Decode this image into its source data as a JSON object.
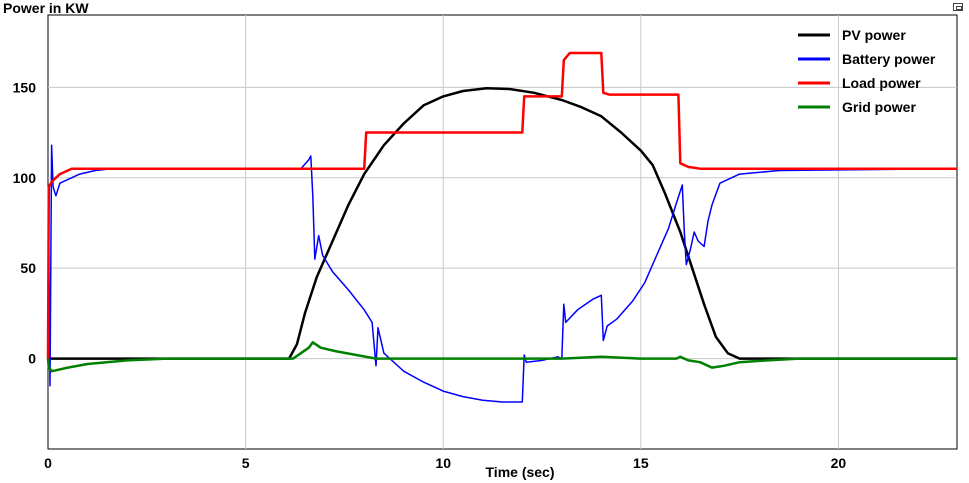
{
  "window": {
    "title": "Power in KW"
  },
  "chart_data": {
    "type": "line",
    "title": "Power in KW",
    "xlabel": "Time (sec)",
    "ylabel": "",
    "xlim": [
      0,
      23
    ],
    "ylim": [
      -50,
      190
    ],
    "x_ticks": [
      0,
      5,
      10,
      15,
      20
    ],
    "y_ticks": [
      0,
      50,
      100,
      150
    ],
    "grid": true,
    "legend_position": "top-right",
    "series": [
      {
        "name": "PV power",
        "color": "#000000",
        "points": [
          [
            0,
            0
          ],
          [
            6.1,
            0
          ],
          [
            6.3,
            8
          ],
          [
            6.5,
            25
          ],
          [
            6.8,
            45
          ],
          [
            7.2,
            65
          ],
          [
            7.6,
            85
          ],
          [
            8.0,
            102
          ],
          [
            8.5,
            118
          ],
          [
            9.0,
            130
          ],
          [
            9.5,
            140
          ],
          [
            10.0,
            145
          ],
          [
            10.5,
            148
          ],
          [
            11.1,
            149.5
          ],
          [
            11.7,
            149
          ],
          [
            12.3,
            147
          ],
          [
            13.0,
            143
          ],
          [
            13.5,
            139
          ],
          [
            14.0,
            134
          ],
          [
            14.5,
            125
          ],
          [
            15.0,
            115
          ],
          [
            15.3,
            107
          ],
          [
            15.6,
            92
          ],
          [
            16.0,
            70
          ],
          [
            16.3,
            50
          ],
          [
            16.6,
            30
          ],
          [
            16.9,
            12
          ],
          [
            17.2,
            3
          ],
          [
            17.5,
            0
          ],
          [
            23,
            0
          ]
        ]
      },
      {
        "name": "Battery power",
        "color": "#0000ff",
        "points": [
          [
            0,
            0
          ],
          [
            0.02,
            60
          ],
          [
            0.05,
            -15
          ],
          [
            0.09,
            118
          ],
          [
            0.13,
            95
          ],
          [
            0.2,
            90
          ],
          [
            0.3,
            97
          ],
          [
            0.5,
            99
          ],
          [
            0.8,
            102
          ],
          [
            1.2,
            104
          ],
          [
            1.6,
            105
          ],
          [
            6.4,
            105
          ],
          [
            6.6,
            110
          ],
          [
            6.65,
            112
          ],
          [
            6.7,
            90
          ],
          [
            6.75,
            55
          ],
          [
            6.85,
            68
          ],
          [
            6.95,
            57
          ],
          [
            7.2,
            48
          ],
          [
            7.6,
            38
          ],
          [
            8.0,
            27
          ],
          [
            8.2,
            20
          ],
          [
            8.3,
            -4
          ],
          [
            8.35,
            17
          ],
          [
            8.5,
            3
          ],
          [
            8.8,
            -3
          ],
          [
            9.0,
            -7
          ],
          [
            9.5,
            -13
          ],
          [
            10.0,
            -18
          ],
          [
            10.5,
            -21
          ],
          [
            11.0,
            -23
          ],
          [
            11.5,
            -24
          ],
          [
            12.0,
            -24
          ],
          [
            12.05,
            2
          ],
          [
            12.1,
            -2
          ],
          [
            12.5,
            -1
          ],
          [
            12.9,
            1
          ],
          [
            13.0,
            0
          ],
          [
            13.05,
            30
          ],
          [
            13.1,
            20
          ],
          [
            13.4,
            27
          ],
          [
            13.8,
            33
          ],
          [
            14.0,
            35
          ],
          [
            14.05,
            10
          ],
          [
            14.15,
            18
          ],
          [
            14.4,
            22
          ],
          [
            14.8,
            32
          ],
          [
            15.1,
            42
          ],
          [
            15.4,
            57
          ],
          [
            15.7,
            72
          ],
          [
            15.9,
            86
          ],
          [
            16.05,
            96
          ],
          [
            16.1,
            70
          ],
          [
            16.15,
            52
          ],
          [
            16.25,
            60
          ],
          [
            16.35,
            70
          ],
          [
            16.45,
            65
          ],
          [
            16.6,
            62
          ],
          [
            16.7,
            76
          ],
          [
            16.8,
            85
          ],
          [
            17.0,
            97
          ],
          [
            17.5,
            102
          ],
          [
            18.5,
            104
          ],
          [
            23,
            105
          ]
        ]
      },
      {
        "name": "Load power",
        "color": "#ff0000",
        "points": [
          [
            0,
            0
          ],
          [
            0.02,
            95
          ],
          [
            0.1,
            98
          ],
          [
            0.3,
            102
          ],
          [
            0.6,
            105
          ],
          [
            8.0,
            105
          ],
          [
            8.05,
            125
          ],
          [
            12.0,
            125
          ],
          [
            12.05,
            145
          ],
          [
            13.0,
            145
          ],
          [
            13.05,
            165
          ],
          [
            13.2,
            169
          ],
          [
            14.0,
            169
          ],
          [
            14.05,
            147
          ],
          [
            14.2,
            146
          ],
          [
            15.95,
            146
          ],
          [
            16.0,
            108
          ],
          [
            16.2,
            106
          ],
          [
            16.5,
            105
          ],
          [
            23,
            105
          ]
        ]
      },
      {
        "name": "Grid power",
        "color": "#008000",
        "points": [
          [
            0,
            0
          ],
          [
            0.02,
            -5
          ],
          [
            0.1,
            -7
          ],
          [
            0.5,
            -5
          ],
          [
            1.0,
            -3
          ],
          [
            2.0,
            -1
          ],
          [
            3.0,
            0
          ],
          [
            6.2,
            0
          ],
          [
            6.4,
            3
          ],
          [
            6.6,
            6
          ],
          [
            6.7,
            9
          ],
          [
            6.9,
            6
          ],
          [
            7.3,
            4
          ],
          [
            7.8,
            2
          ],
          [
            8.3,
            0
          ],
          [
            12.0,
            0
          ],
          [
            13.0,
            0
          ],
          [
            14.0,
            1
          ],
          [
            15.0,
            0
          ],
          [
            15.9,
            0
          ],
          [
            16.0,
            1
          ],
          [
            16.2,
            -1
          ],
          [
            16.5,
            -2
          ],
          [
            16.8,
            -5
          ],
          [
            17.1,
            -4
          ],
          [
            17.5,
            -2
          ],
          [
            18.2,
            -1
          ],
          [
            19.0,
            0
          ],
          [
            23,
            0
          ]
        ]
      }
    ]
  }
}
